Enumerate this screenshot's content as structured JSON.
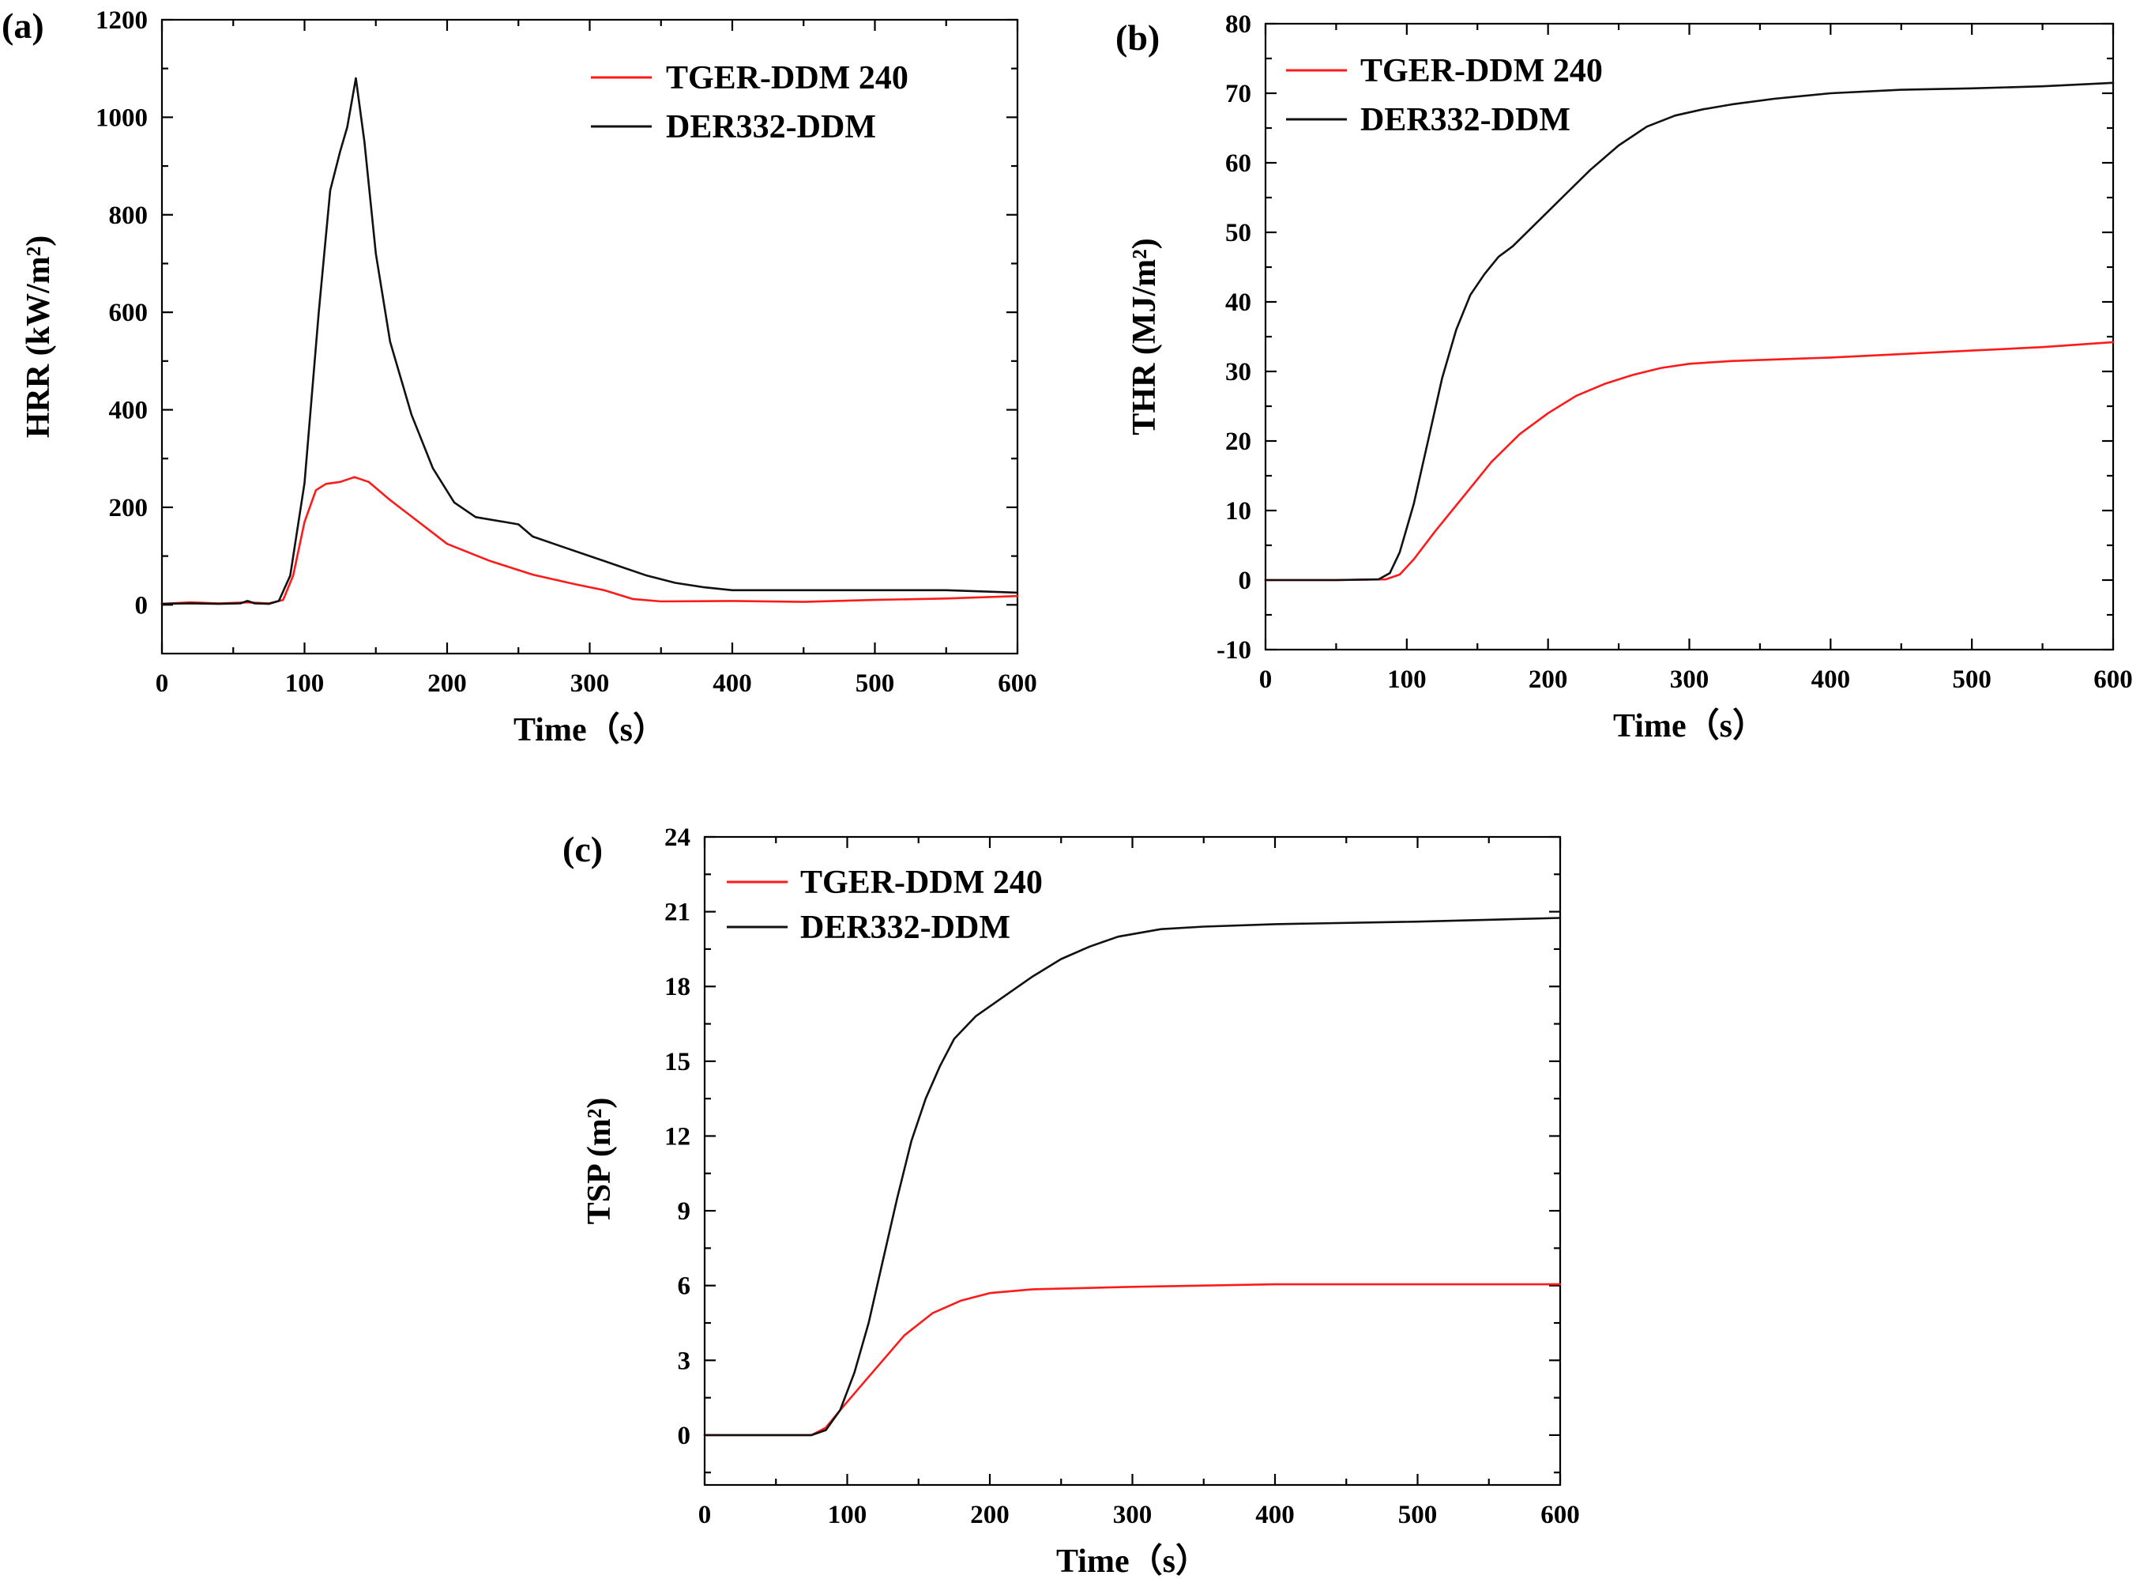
{
  "colors": {
    "tger": "#ff1a1a",
    "der": "#111111"
  },
  "chart_data": [
    {
      "id": "a",
      "type": "line",
      "panel_label": "(a)",
      "xlabel": "Time（s）",
      "ylabel": "HRR (kW/m²)",
      "xlim": [
        0,
        600
      ],
      "ylim": [
        -100,
        1200
      ],
      "xticks": [
        0,
        100,
        200,
        300,
        400,
        500,
        600
      ],
      "yticks": [
        0,
        200,
        400,
        600,
        800,
        1000,
        1200
      ],
      "grid": false,
      "legend_position": "top-right",
      "series": [
        {
          "name": "TGER-DDM 240",
          "color": "#ff1a1a",
          "points": [
            [
              0,
              2
            ],
            [
              20,
              5
            ],
            [
              40,
              3
            ],
            [
              60,
              5
            ],
            [
              75,
              3
            ],
            [
              85,
              10
            ],
            [
              92,
              60
            ],
            [
              100,
              170
            ],
            [
              108,
              235
            ],
            [
              115,
              248
            ],
            [
              125,
              252
            ],
            [
              135,
              262
            ],
            [
              145,
              252
            ],
            [
              160,
              215
            ],
            [
              180,
              170
            ],
            [
              200,
              125
            ],
            [
              230,
              90
            ],
            [
              260,
              62
            ],
            [
              290,
              42
            ],
            [
              310,
              30
            ],
            [
              330,
              12
            ],
            [
              350,
              7
            ],
            [
              400,
              8
            ],
            [
              450,
              6
            ],
            [
              500,
              10
            ],
            [
              550,
              13
            ],
            [
              600,
              18
            ]
          ]
        },
        {
          "name": "DER332-DDM",
          "color": "#111111",
          "points": [
            [
              0,
              2
            ],
            [
              20,
              3
            ],
            [
              40,
              2
            ],
            [
              55,
              3
            ],
            [
              60,
              8
            ],
            [
              65,
              3
            ],
            [
              75,
              2
            ],
            [
              82,
              8
            ],
            [
              90,
              60
            ],
            [
              100,
              250
            ],
            [
              110,
              600
            ],
            [
              118,
              850
            ],
            [
              125,
              930
            ],
            [
              130,
              980
            ],
            [
              136,
              1080
            ],
            [
              142,
              950
            ],
            [
              150,
              720
            ],
            [
              160,
              540
            ],
            [
              175,
              390
            ],
            [
              190,
              280
            ],
            [
              205,
              210
            ],
            [
              220,
              180
            ],
            [
              240,
              170
            ],
            [
              250,
              165
            ],
            [
              260,
              140
            ],
            [
              280,
              120
            ],
            [
              300,
              100
            ],
            [
              320,
              80
            ],
            [
              340,
              60
            ],
            [
              360,
              45
            ],
            [
              380,
              36
            ],
            [
              400,
              30
            ],
            [
              450,
              30
            ],
            [
              500,
              30
            ],
            [
              550,
              30
            ],
            [
              600,
              25
            ]
          ]
        }
      ]
    },
    {
      "id": "b",
      "type": "line",
      "panel_label": "(b)",
      "xlabel": "Time（s）",
      "ylabel": "THR (MJ/m²)",
      "xlim": [
        0,
        600
      ],
      "ylim": [
        -10,
        80
      ],
      "xticks": [
        0,
        100,
        200,
        300,
        400,
        500,
        600
      ],
      "yticks": [
        -10,
        0,
        10,
        20,
        30,
        40,
        50,
        60,
        70,
        80
      ],
      "grid": false,
      "legend_position": "top-left",
      "series": [
        {
          "name": "TGER-DDM 240",
          "color": "#ff1a1a",
          "points": [
            [
              0,
              0
            ],
            [
              50,
              0
            ],
            [
              85,
              0.1
            ],
            [
              95,
              0.8
            ],
            [
              105,
              3
            ],
            [
              120,
              7
            ],
            [
              140,
              12
            ],
            [
              160,
              17
            ],
            [
              180,
              21
            ],
            [
              200,
              24
            ],
            [
              220,
              26.5
            ],
            [
              240,
              28.2
            ],
            [
              260,
              29.5
            ],
            [
              280,
              30.5
            ],
            [
              300,
              31.1
            ],
            [
              330,
              31.5
            ],
            [
              400,
              32
            ],
            [
              500,
              33
            ],
            [
              550,
              33.5
            ],
            [
              600,
              34.2
            ]
          ]
        },
        {
          "name": "DER332-DDM",
          "color": "#111111",
          "points": [
            [
              0,
              0
            ],
            [
              50,
              0
            ],
            [
              80,
              0.1
            ],
            [
              88,
              1
            ],
            [
              95,
              4
            ],
            [
              105,
              11
            ],
            [
              115,
              20
            ],
            [
              125,
              29
            ],
            [
              135,
              36
            ],
            [
              145,
              41
            ],
            [
              155,
              44
            ],
            [
              165,
              46.5
            ],
            [
              175,
              48
            ],
            [
              190,
              51
            ],
            [
              210,
              55
            ],
            [
              230,
              59
            ],
            [
              250,
              62.5
            ],
            [
              270,
              65.2
            ],
            [
              290,
              66.8
            ],
            [
              310,
              67.7
            ],
            [
              330,
              68.4
            ],
            [
              360,
              69.2
            ],
            [
              400,
              70
            ],
            [
              450,
              70.5
            ],
            [
              500,
              70.7
            ],
            [
              550,
              71
            ],
            [
              600,
              71.5
            ]
          ]
        }
      ]
    },
    {
      "id": "c",
      "type": "line",
      "panel_label": "(c)",
      "xlabel": "Time（s）",
      "ylabel": "TSP (m²)",
      "xlim": [
        0,
        600
      ],
      "ylim": [
        -2,
        24
      ],
      "xticks": [
        0,
        100,
        200,
        300,
        400,
        500,
        600
      ],
      "yticks": [
        0,
        3,
        6,
        9,
        12,
        15,
        18,
        21,
        24
      ],
      "grid": false,
      "legend_position": "top-left",
      "series": [
        {
          "name": "TGER-DDM 240",
          "color": "#ff1a1a",
          "points": [
            [
              0,
              0
            ],
            [
              75,
              0
            ],
            [
              85,
              0.3
            ],
            [
              95,
              1
            ],
            [
              110,
              2
            ],
            [
              125,
              3
            ],
            [
              140,
              4
            ],
            [
              160,
              4.9
            ],
            [
              180,
              5.4
            ],
            [
              200,
              5.7
            ],
            [
              230,
              5.85
            ],
            [
              300,
              5.95
            ],
            [
              400,
              6.05
            ],
            [
              500,
              6.05
            ],
            [
              600,
              6.05
            ]
          ]
        },
        {
          "name": "DER332-DDM",
          "color": "#111111",
          "points": [
            [
              0,
              0
            ],
            [
              75,
              0
            ],
            [
              85,
              0.2
            ],
            [
              95,
              1
            ],
            [
              105,
              2.5
            ],
            [
              115,
              4.5
            ],
            [
              125,
              7
            ],
            [
              135,
              9.5
            ],
            [
              145,
              11.8
            ],
            [
              155,
              13.5
            ],
            [
              165,
              14.8
            ],
            [
              175,
              15.9
            ],
            [
              190,
              16.8
            ],
            [
              210,
              17.6
            ],
            [
              230,
              18.4
            ],
            [
              250,
              19.1
            ],
            [
              270,
              19.6
            ],
            [
              290,
              20
            ],
            [
              320,
              20.3
            ],
            [
              350,
              20.4
            ],
            [
              400,
              20.5
            ],
            [
              500,
              20.6
            ],
            [
              600,
              20.75
            ]
          ]
        }
      ]
    }
  ]
}
